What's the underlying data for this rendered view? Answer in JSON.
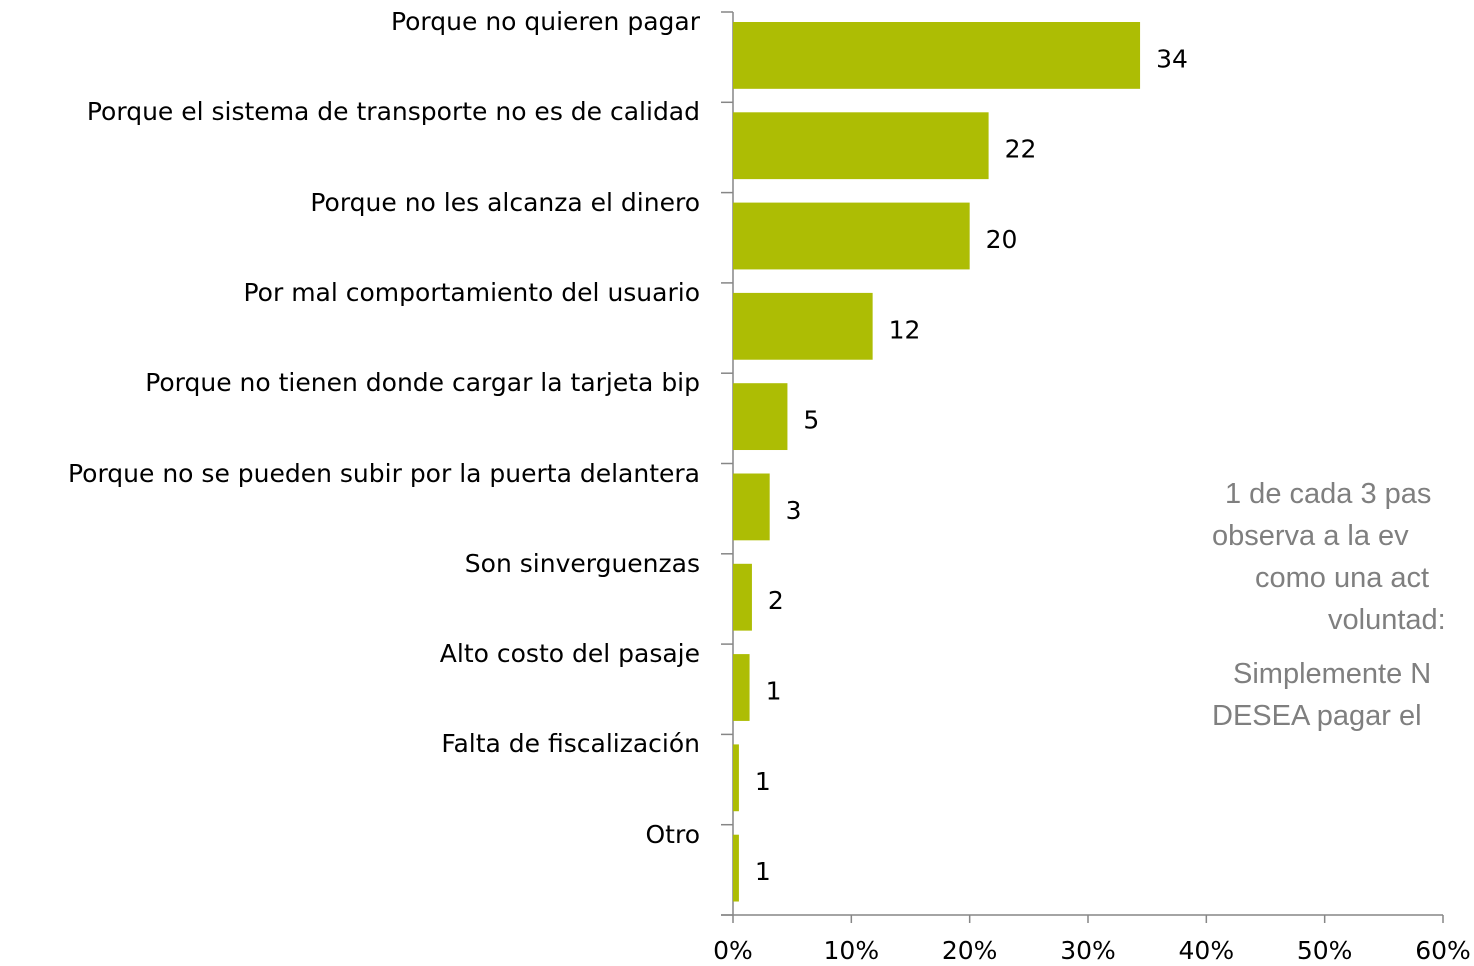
{
  "chart_data": {
    "type": "bar",
    "orientation": "horizontal",
    "categories": [
      "Porque no quieren pagar",
      "Porque el sistema de transporte no es de calidad",
      "Porque no les alcanza el dinero",
      "Por mal comportamiento del usuario",
      "Porque no tienen donde cargar la tarjeta bip",
      "Porque no se pueden subir por la puerta delantera",
      "Son sinverguenzas",
      "Alto costo del pasaje",
      "Falta de fiscalización",
      "Otro"
    ],
    "values": [
      34.4,
      21.6,
      20.0,
      11.8,
      4.6,
      3.1,
      1.6,
      1.4,
      0.5,
      0.5
    ],
    "value_labels": [
      "34",
      "22",
      "20",
      "12",
      "5",
      "3",
      "2",
      "1",
      "1",
      "1"
    ],
    "color": "#adbd04",
    "xlim": [
      0,
      60
    ],
    "xticks": [
      {
        "value": 0,
        "label": "0%"
      },
      {
        "value": 10,
        "label": "10%"
      },
      {
        "value": 20,
        "label": "20%"
      },
      {
        "value": 30,
        "label": "30%"
      },
      {
        "value": 40,
        "label": "40%"
      },
      {
        "value": 50,
        "label": "50%"
      },
      {
        "value": 60,
        "label": "60%"
      }
    ],
    "annotations": [
      "1 de cada 3 pas",
      "observa a la ev",
      "como una act",
      "voluntad:",
      "Simplemente N",
      "DESEA pagar el"
    ]
  }
}
